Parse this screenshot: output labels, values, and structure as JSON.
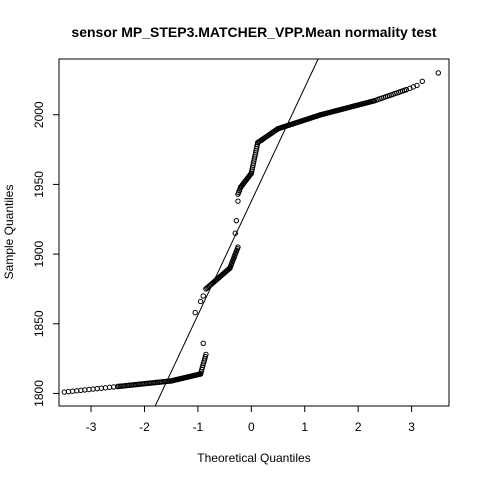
{
  "chart_data": {
    "type": "scatter",
    "title": "sensor MP_STEP3.MATCHER_VPP.Mean normality test",
    "xlabel": "Theoretical Quantiles",
    "ylabel": "Sample Quantiles",
    "xlim": [
      -3.6,
      3.7
    ],
    "ylim": [
      1791,
      2040
    ],
    "x_ticks": [
      -3,
      -2,
      -1,
      0,
      1,
      2,
      3
    ],
    "x_tick_labels": [
      "-3",
      "-2",
      "-1",
      "0",
      "1",
      "2",
      "3"
    ],
    "y_ticks": [
      1800,
      1850,
      1900,
      1950,
      2000
    ],
    "y_tick_labels": [
      "1800",
      "1850",
      "1900",
      "1950",
      "2000"
    ],
    "grid": false,
    "marker": "open-circle",
    "reference_line": {
      "x": [
        -1.8,
        1.25
      ],
      "y": [
        1791,
        2040
      ]
    },
    "segments": [
      {
        "x_from": -3.5,
        "x_to": -2.5,
        "y_from": 1801,
        "y_to": 1805,
        "count": 14
      },
      {
        "x_from": -2.5,
        "x_to": -1.5,
        "y_from": 1805,
        "y_to": 1809,
        "count": 40
      },
      {
        "x_from": -1.5,
        "x_to": -0.95,
        "y_from": 1809,
        "y_to": 1814,
        "count": 40
      },
      {
        "x_from": -0.95,
        "x_to": -0.85,
        "y_from": 1814,
        "y_to": 1828,
        "count": 10
      },
      {
        "x_from": -0.85,
        "x_to": -0.7,
        "y_from": 1875,
        "y_to": 1880,
        "count": 8
      },
      {
        "x_from": -0.7,
        "x_to": -0.4,
        "y_from": 1880,
        "y_to": 1890,
        "count": 20
      },
      {
        "x_from": -0.4,
        "x_to": -0.25,
        "y_from": 1890,
        "y_to": 1905,
        "count": 14
      },
      {
        "x_from": -0.25,
        "x_to": -0.2,
        "y_from": 1943,
        "y_to": 1948,
        "count": 5
      },
      {
        "x_from": -0.2,
        "x_to": 0.0,
        "y_from": 1948,
        "y_to": 1958,
        "count": 16
      },
      {
        "x_from": 0.0,
        "x_to": 0.12,
        "y_from": 1958,
        "y_to": 1980,
        "count": 16
      },
      {
        "x_from": 0.12,
        "x_to": 0.5,
        "y_from": 1980,
        "y_to": 1990,
        "count": 20
      },
      {
        "x_from": 0.5,
        "x_to": 1.3,
        "y_from": 1990,
        "y_to": 2000,
        "count": 40
      },
      {
        "x_from": 1.3,
        "x_to": 2.3,
        "y_from": 2000,
        "y_to": 2010,
        "count": 45
      },
      {
        "x_from": 2.3,
        "x_to": 2.9,
        "y_from": 2010,
        "y_to": 2018,
        "count": 18
      },
      {
        "x_from": 2.9,
        "x_to": 3.1,
        "y_from": 2018,
        "y_to": 2021,
        "count": 4
      }
    ],
    "points": [
      {
        "x": -1.05,
        "y": 1858
      },
      {
        "x": -0.95,
        "y": 1866
      },
      {
        "x": -0.9,
        "y": 1836
      },
      {
        "x": -0.9,
        "y": 1870
      },
      {
        "x": -0.3,
        "y": 1915
      },
      {
        "x": -0.28,
        "y": 1924
      },
      {
        "x": -0.25,
        "y": 1938
      },
      {
        "x": 0.2,
        "y": 1982
      },
      {
        "x": 3.2,
        "y": 2024
      },
      {
        "x": 3.5,
        "y": 2030
      }
    ]
  }
}
